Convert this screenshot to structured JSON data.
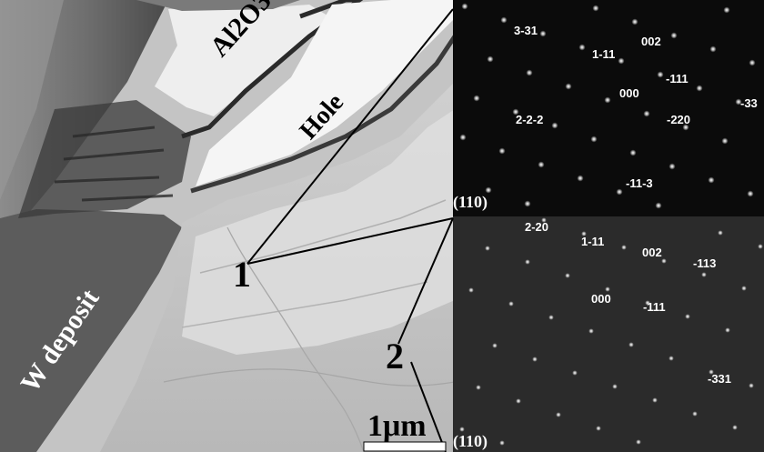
{
  "micrograph": {
    "regions": {
      "alumina": "Al2O3",
      "hole": "Hole",
      "deposit": "W deposit"
    },
    "site_markers": [
      "1",
      "2"
    ],
    "scale_bar": {
      "label": "1μm"
    }
  },
  "diffraction_patterns": [
    {
      "zone_axis": "(110)",
      "spot_indices": [
        "3-31",
        "1-11",
        "002",
        "-111",
        "000",
        "-33",
        "2-2-2",
        "-220",
        "-11-3"
      ]
    },
    {
      "zone_axis": "(110)",
      "spot_indices": [
        "2-20",
        "1-11",
        "002",
        "-113",
        "000",
        "-111",
        "-331"
      ]
    }
  ],
  "colors": {
    "pattern_background_top": "#0b0b0b",
    "pattern_background_bottom": "#2a2a2a",
    "spot": "#ffffff",
    "label_light": "#ffffff",
    "label_dark": "#000000"
  }
}
